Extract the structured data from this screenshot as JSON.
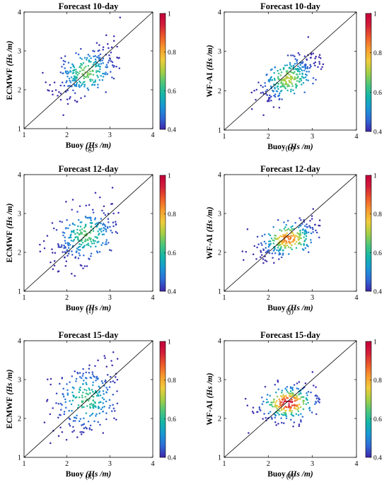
{
  "figure": {
    "colormap": [
      "#3e26a8",
      "#2e6bd6",
      "#1a97d4",
      "#13b6a8",
      "#4cc67a",
      "#a6cf45",
      "#f0cb3b",
      "#f79a2e",
      "#ed5a2a",
      "#d21f3a",
      "#c3003a"
    ],
    "marker_color_low": "#2a52a8"
  },
  "chart_data": [
    {
      "type": "scatter",
      "panel": "(g)",
      "title": "Forecast 10-day",
      "xlabel_prefix": "Buoy ",
      "xlabel_unit": "(Hs /m)",
      "ylabel_prefix": "ECMWF ",
      "ylabel_unit": "(Hs /m)",
      "xlim": [
        1,
        4
      ],
      "ylim": [
        1,
        4
      ],
      "xticks": [
        "1",
        "2",
        "3",
        "4"
      ],
      "yticks": [
        "1",
        "2",
        "3",
        "4"
      ],
      "colorbar": {
        "range": [
          0.4,
          1
        ],
        "ticks": [
          "0.4",
          "0.6",
          "0.8",
          "1"
        ]
      },
      "reference_line": "y = x",
      "cloud": {
        "cx": 2.45,
        "cy": 2.45,
        "sx": 0.38,
        "sy": 0.35,
        "rho": 0.55,
        "n": 270,
        "peak_density": 0.68,
        "seed": 11
      }
    },
    {
      "type": "scatter",
      "panel": "(h)",
      "title": "Forecast 10-day",
      "xlabel_prefix": "Buoy ",
      "xlabel_unit": "(Hs /m)",
      "ylabel_prefix": "WF-AI ",
      "ylabel_unit": "(Hs /m)",
      "xlim": [
        1,
        4
      ],
      "ylim": [
        1,
        4
      ],
      "xticks": [
        "1",
        "2",
        "3",
        "4"
      ],
      "yticks": [
        "1",
        "2",
        "3",
        "4"
      ],
      "colorbar": {
        "range": [
          0.4,
          1
        ],
        "ticks": [
          "0.4",
          "0.6",
          "0.8",
          "1"
        ]
      },
      "reference_line": "y = x",
      "cloud": {
        "cx": 2.45,
        "cy": 2.3,
        "sx": 0.36,
        "sy": 0.33,
        "rho": 0.7,
        "n": 280,
        "peak_density": 0.72,
        "seed": 23
      }
    },
    {
      "type": "scatter",
      "panel": "(i)",
      "title": "Forecast 12-day",
      "xlabel_prefix": "Buoy ",
      "xlabel_unit": "(Hs /m)",
      "ylabel_prefix": "ECMWF ",
      "ylabel_unit": "(Hs /m)",
      "xlim": [
        1,
        4
      ],
      "ylim": [
        1,
        4
      ],
      "xticks": [
        "1",
        "2",
        "3",
        "4"
      ],
      "yticks": [
        "1",
        "2",
        "3",
        "4"
      ],
      "colorbar": {
        "range": [
          0.4,
          1
        ],
        "ticks": [
          "0.4",
          "0.6",
          "0.8",
          "1"
        ]
      },
      "reference_line": "y = x",
      "cloud": {
        "cx": 2.45,
        "cy": 2.45,
        "sx": 0.4,
        "sy": 0.38,
        "rho": 0.45,
        "n": 280,
        "peak_density": 0.66,
        "seed": 37
      }
    },
    {
      "type": "scatter",
      "panel": "(j)",
      "title": "Forecast 12-day",
      "xlabel_prefix": "Buoy ",
      "xlabel_unit": "(Hs /m)",
      "ylabel_prefix": "WF-AI ",
      "ylabel_unit": "(Hs /m)",
      "xlim": [
        1,
        4
      ],
      "ylim": [
        1,
        4
      ],
      "xticks": [
        "1",
        "2",
        "3",
        "4"
      ],
      "yticks": [
        "1",
        "2",
        "3",
        "4"
      ],
      "colorbar": {
        "range": [
          0.4,
          1
        ],
        "ticks": [
          "0.4",
          "0.6",
          "0.8",
          "1"
        ]
      },
      "reference_line": "y = x",
      "cloud": {
        "cx": 2.45,
        "cy": 2.35,
        "sx": 0.36,
        "sy": 0.27,
        "rho": 0.55,
        "n": 270,
        "peak_density": 0.86,
        "seed": 41
      }
    },
    {
      "type": "scatter",
      "panel": "(k)",
      "title": "Forecast 15-day",
      "xlabel_prefix": "Buoy ",
      "xlabel_unit": "(Hs /m)",
      "ylabel_prefix": "ECMWF ",
      "ylabel_unit": "(Hs /m)",
      "xlim": [
        1,
        4
      ],
      "ylim": [
        1,
        4
      ],
      "xticks": [
        "1",
        "2",
        "3",
        "4"
      ],
      "yticks": [
        "1",
        "2",
        "3",
        "4"
      ],
      "colorbar": {
        "range": [
          0.4,
          1
        ],
        "ticks": [
          "0.4",
          "0.6",
          "0.8",
          "1"
        ]
      },
      "reference_line": "y = x",
      "cloud": {
        "cx": 2.45,
        "cy": 2.5,
        "sx": 0.42,
        "sy": 0.45,
        "rho": 0.2,
        "n": 270,
        "peak_density": 0.64,
        "seed": 53
      }
    },
    {
      "type": "scatter",
      "panel": "(l)",
      "title": "Forecast 15-day",
      "xlabel_prefix": "Buoy ",
      "xlabel_unit": "(Hs /m)",
      "ylabel_prefix": "WF-AI ",
      "ylabel_unit": "(Hs /m)",
      "xlim": [
        1,
        4
      ],
      "ylim": [
        1,
        4
      ],
      "xticks": [
        "1",
        "2",
        "3",
        "4"
      ],
      "yticks": [
        "1",
        "2",
        "3",
        "4"
      ],
      "colorbar": {
        "range": [
          0.4,
          1
        ],
        "ticks": [
          "0.4",
          "0.6",
          "0.8",
          "1"
        ]
      },
      "reference_line": "y = x",
      "cloud": {
        "cx": 2.45,
        "cy": 2.4,
        "sx": 0.36,
        "sy": 0.25,
        "rho": 0.35,
        "n": 270,
        "peak_density": 0.97,
        "seed": 67
      }
    }
  ]
}
